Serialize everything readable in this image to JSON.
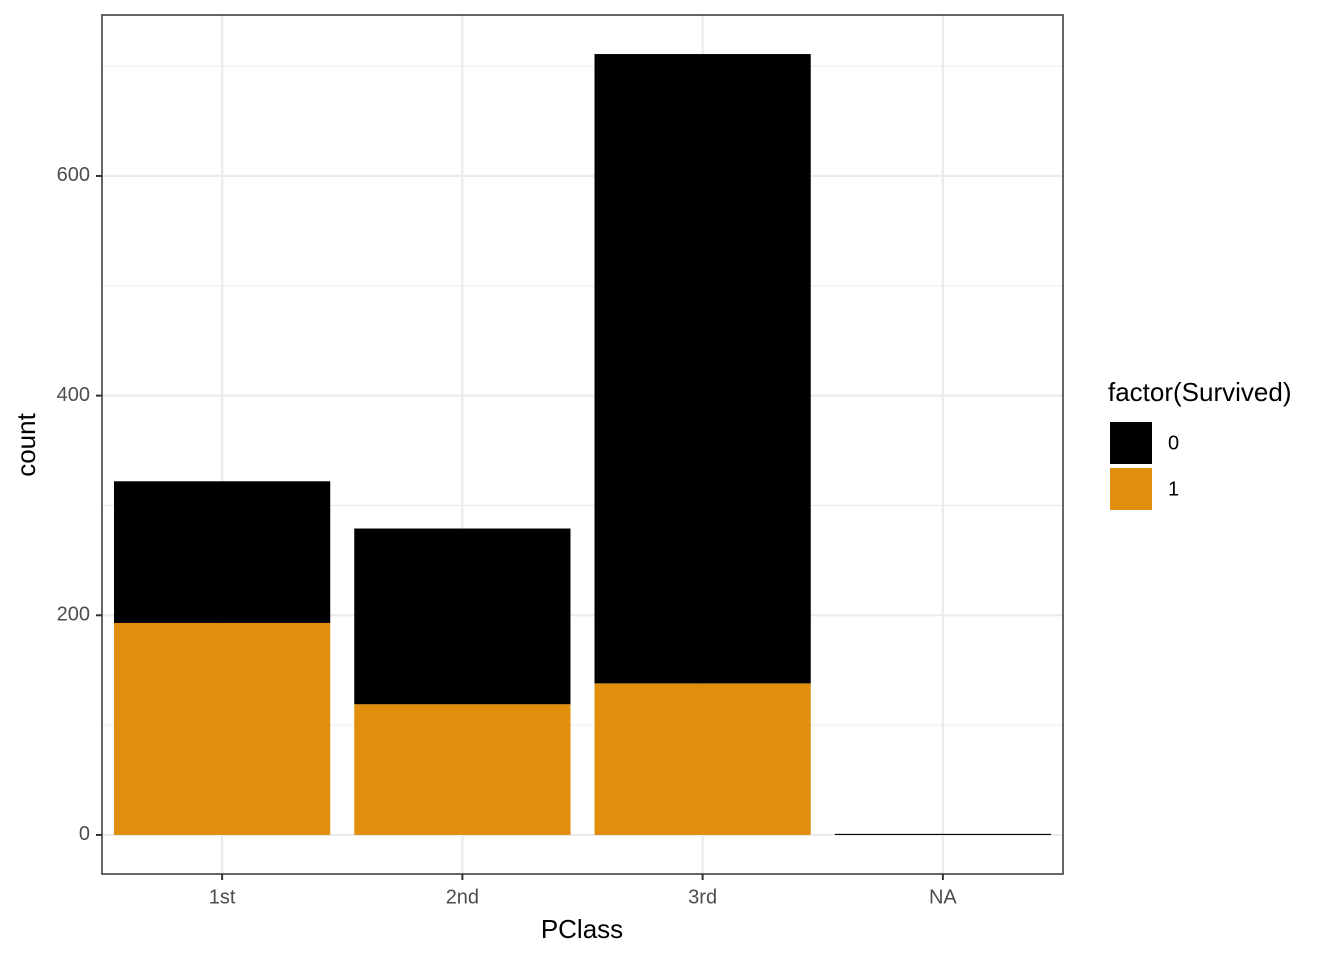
{
  "chart_data": {
    "type": "stacked_bar",
    "x_label": "PClass",
    "y_label": "count",
    "categories": [
      "1st",
      "2nd",
      "3rd",
      "NA"
    ],
    "series": [
      {
        "name": "0",
        "color": "#000000",
        "values": [
          129,
          160,
          573,
          1
        ]
      },
      {
        "name": "1",
        "color": "#E08E0B",
        "values": [
          193,
          119,
          138,
          0
        ]
      }
    ],
    "legend_title": "factor(Survived)",
    "ylim": [
      -35.55,
      746.55
    ],
    "yticks": [
      0,
      200,
      400,
      600
    ],
    "y_minor_grid": [
      100,
      300,
      500,
      700
    ],
    "grid": true,
    "legend_position": "right"
  }
}
